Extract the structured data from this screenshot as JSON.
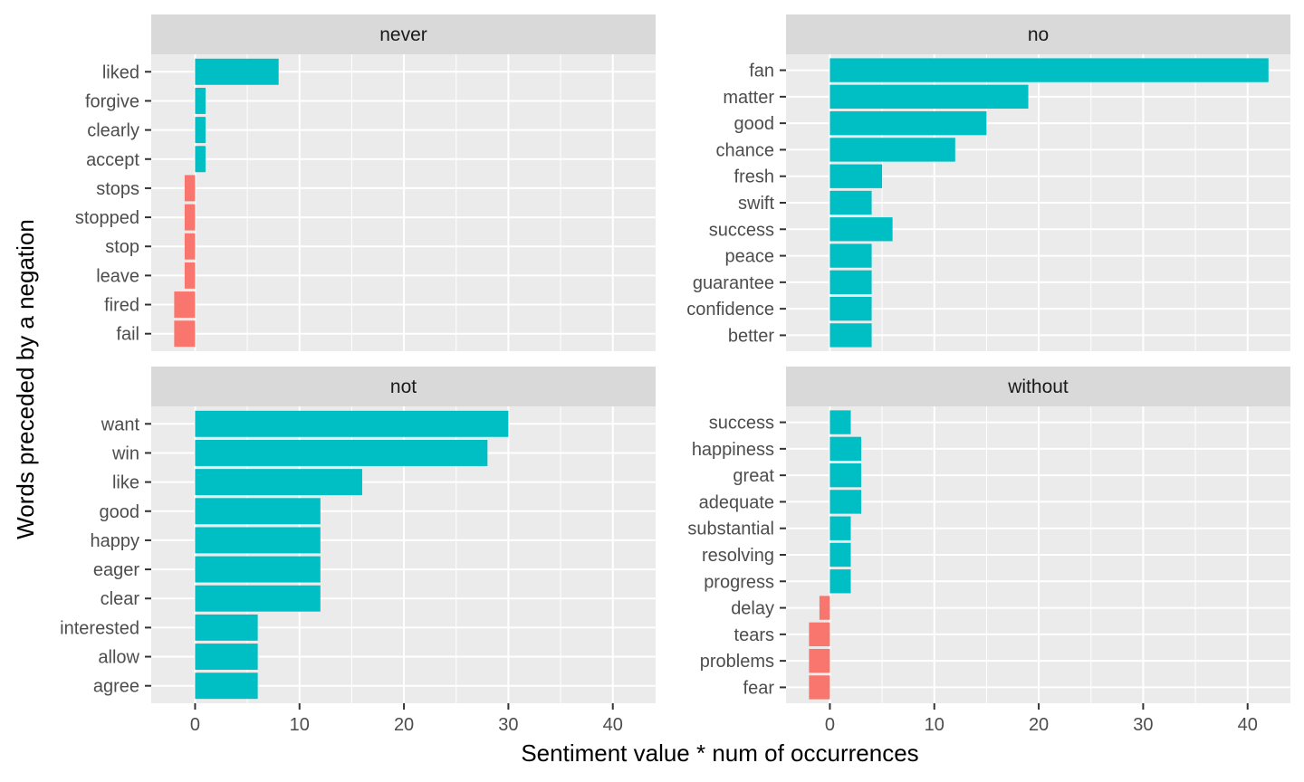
{
  "chart_data": {
    "type": "bar",
    "orientation": "horizontal",
    "facets": "2x2",
    "xlabel": "Sentiment value * num of occurrences",
    "ylabel": "Words preceded by a negation",
    "xlim": [
      -4.2,
      44.1
    ],
    "xticks": [
      0,
      10,
      20,
      30,
      40
    ],
    "grid": true,
    "colors": {
      "positive": "#00BFC4",
      "negative": "#F8766D",
      "panel_bg": "#EBEBEB",
      "strip_bg": "#D9D9D9",
      "grid": "#FFFFFF"
    },
    "panels": [
      {
        "title": "never",
        "categories": [
          "liked",
          "forgive",
          "clearly",
          "accept",
          "stops",
          "stopped",
          "stop",
          "leave",
          "fired",
          "fail"
        ],
        "values": [
          8,
          1,
          1,
          1,
          -1,
          -1,
          -1,
          -1,
          -2,
          -2
        ]
      },
      {
        "title": "no",
        "categories": [
          "fan",
          "matter",
          "good",
          "chance",
          "fresh",
          "swift",
          "success",
          "peace",
          "guarantee",
          "confidence",
          "better"
        ],
        "values": [
          42,
          19,
          15,
          12,
          5,
          4,
          6,
          4,
          4,
          4,
          4
        ]
      },
      {
        "title": "not",
        "categories": [
          "want",
          "win",
          "like",
          "good",
          "happy",
          "eager",
          "clear",
          "interested",
          "allow",
          "agree"
        ],
        "values": [
          30,
          28,
          16,
          12,
          12,
          12,
          12,
          6,
          6,
          6
        ]
      },
      {
        "title": "without",
        "categories": [
          "success",
          "happiness",
          "great",
          "adequate",
          "substantial",
          "resolving",
          "progress",
          "delay",
          "tears",
          "problems",
          "fear"
        ],
        "values": [
          2,
          3,
          3,
          3,
          2,
          2,
          2,
          -1,
          -2,
          -2,
          -2
        ]
      }
    ]
  }
}
